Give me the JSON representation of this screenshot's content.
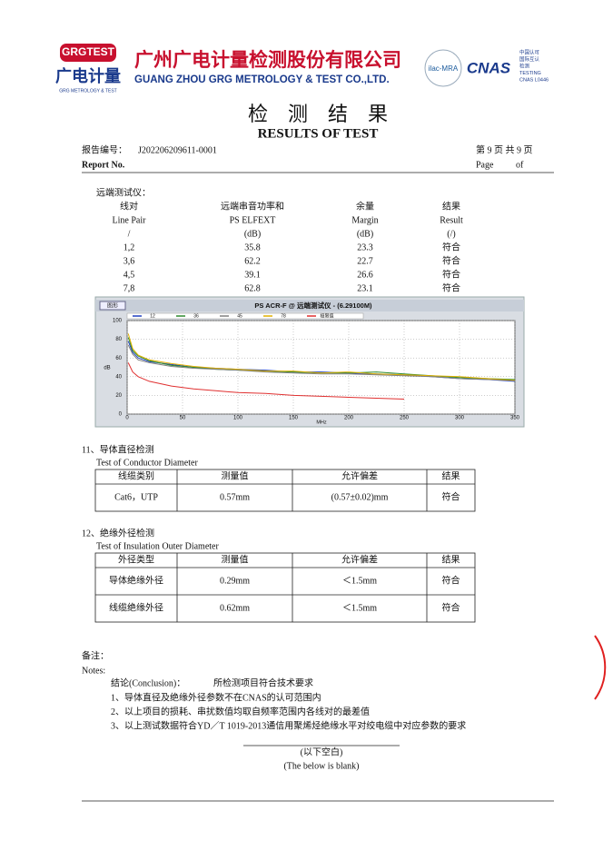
{
  "header": {
    "logo": "GRGTEST",
    "brand": "广电计量",
    "brand_en": "GRG METROLOGY & TEST",
    "company_cn": "广州广电计量检测股份有限公司",
    "company_en": "GUANG ZHOU GRG METROLOGY & TEST CO.,LTD.",
    "ilac": "ilac-MRA",
    "cnas": "CNAS",
    "cnas_lines": [
      "中国认可",
      "国际互认",
      "检测",
      "TESTING",
      "CNAS L0446"
    ]
  },
  "title": {
    "cn": "检　测　结　果",
    "en": "RESULTS OF TEST"
  },
  "report": {
    "no_label_cn": "报告编号：",
    "no": "J202206209611-0001",
    "page_cn": "第 9 页 共 9 页",
    "no_label_en": "Report No.",
    "page_en": "Page",
    "of_en": "of"
  },
  "fext": {
    "label": "远端测试仪：",
    "header_cn": [
      "线对",
      "远端串音功率和",
      "余量",
      "结果"
    ],
    "header_en": [
      "Line Pair",
      "PS ELFEXT",
      "Margin",
      "Result"
    ],
    "units": [
      "/",
      "(dB)",
      "(dB)",
      "(/)"
    ],
    "rows": [
      [
        "1,2",
        "35.8",
        "23.3",
        "符合"
      ],
      [
        "3,6",
        "62.2",
        "22.7",
        "符合"
      ],
      [
        "4,5",
        "39.1",
        "26.6",
        "符合"
      ],
      [
        "7,8",
        "62.8",
        "23.1",
        "符合"
      ]
    ]
  },
  "chart_data": {
    "type": "line",
    "title": "PS ACR-F @ 远端测试仪 - (6.29100M)",
    "button": "图形",
    "ylabel": "dB",
    "xlabel": "MHz",
    "xlim": [
      0,
      350
    ],
    "ylim": [
      0,
      100
    ],
    "xticks": [
      0,
      50,
      100,
      150,
      200,
      250,
      300,
      350
    ],
    "yticks": [
      0,
      20,
      40,
      60,
      80,
      100
    ],
    "grid": true,
    "x": [
      1,
      5,
      10,
      20,
      40,
      60,
      80,
      100,
      125,
      150,
      175,
      200,
      225,
      250,
      275,
      300,
      325,
      350
    ],
    "series": [
      {
        "name": "12",
        "color": "#2040c0",
        "values": [
          78,
          66,
          60,
          56,
          53,
          50,
          49,
          48,
          47,
          45,
          45,
          44,
          43,
          42,
          40,
          38,
          37,
          35
        ]
      },
      {
        "name": "36",
        "color": "#2e8b2e",
        "values": [
          82,
          68,
          62,
          57,
          52,
          50,
          48,
          47,
          46,
          45,
          44,
          44,
          45,
          43,
          41,
          39,
          38,
          37
        ]
      },
      {
        "name": "45",
        "color": "#808080",
        "values": [
          74,
          64,
          58,
          55,
          51,
          49,
          48,
          47,
          45,
          44,
          43,
          43,
          42,
          41,
          40,
          38,
          37,
          36
        ]
      },
      {
        "name": "78",
        "color": "#e0b000",
        "values": [
          86,
          70,
          63,
          58,
          54,
          51,
          49,
          48,
          46,
          46,
          44,
          45,
          43,
          42,
          41,
          40,
          38,
          36
        ]
      },
      {
        "name": "极限值",
        "color": "#e03030",
        "values": [
          55,
          45,
          40,
          35,
          30,
          27,
          25,
          23,
          22,
          20,
          19,
          18,
          17,
          16,
          null,
          null,
          null,
          null
        ]
      }
    ]
  },
  "conductor": {
    "label_cn": "11、导体直径检测",
    "label_en": "Test of Conductor Diameter",
    "header": [
      "线缆类别",
      "测量值",
      "允许偏差",
      "结果"
    ],
    "rows": [
      [
        "Cat6，UTP",
        "0.57mm",
        "(0.57±0.02)mm",
        "符合"
      ]
    ]
  },
  "insulation": {
    "label_cn": "12、绝缘外径检测",
    "label_en": "Test of Insulation Outer Diameter",
    "header": [
      "外径类型",
      "测量值",
      "允许偏差",
      "结果"
    ],
    "rows": [
      [
        "导体绝缘外径",
        "0.29mm",
        "＜1.5mm",
        "符合"
      ],
      [
        "线缆绝缘外径",
        "0.62mm",
        "＜1.5mm",
        "符合"
      ]
    ]
  },
  "notes": {
    "label_cn": "备注：",
    "label_en": "Notes:",
    "conclusion_label": "结论(Conclusion)：",
    "conclusion": "所检测项目符合技术要求",
    "items": [
      "1、导体直径及绝缘外径参数不在CNAS的认可范围内",
      "2、以上项目的损耗、串扰数值均取自频率范围内各线对的最差值",
      "3、以上测试数据符合YD／T 1019-2013通信用聚烯烃绝缘水平对绞电缆中对应参数的要求"
    ]
  },
  "blank": {
    "cn": "(以下空白)",
    "en": "(The below is blank)"
  }
}
